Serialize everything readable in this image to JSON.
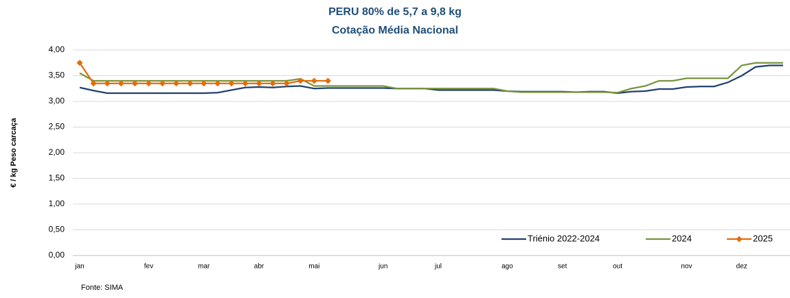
{
  "chart_data": {
    "type": "line",
    "title": "PERU 80% de 5,7 a 9,8 kg",
    "subtitle": "Cotação Média Nacional",
    "y_label": "€ / kg Peso carcaça",
    "source": "Fonte: SIMA",
    "categories": [
      "jan",
      null,
      null,
      null,
      null,
      "fev",
      null,
      null,
      null,
      "mar",
      null,
      null,
      null,
      "abr",
      null,
      null,
      null,
      "mai",
      null,
      null,
      null,
      null,
      "jun",
      null,
      null,
      null,
      "jul",
      null,
      null,
      null,
      null,
      "ago",
      null,
      null,
      null,
      "set",
      null,
      null,
      null,
      "out",
      null,
      null,
      null,
      null,
      "nov",
      null,
      null,
      null,
      "dez",
      null,
      null,
      null
    ],
    "series": [
      {
        "name": "Triénio 2022-2024",
        "color": "#203f6e",
        "marker": false,
        "values": [
          3.27,
          3.21,
          3.16,
          3.16,
          3.16,
          3.16,
          3.16,
          3.16,
          3.16,
          3.16,
          3.17,
          3.22,
          3.27,
          3.28,
          3.27,
          3.29,
          3.3,
          3.25,
          3.26,
          3.26,
          3.26,
          3.26,
          3.26,
          3.25,
          3.25,
          3.25,
          3.22,
          3.22,
          3.22,
          3.22,
          3.22,
          3.2,
          3.19,
          3.19,
          3.19,
          3.19,
          3.18,
          3.19,
          3.19,
          3.16,
          3.19,
          3.2,
          3.24,
          3.24,
          3.28,
          3.29,
          3.29,
          3.37,
          3.5,
          3.67,
          3.7,
          3.7
        ]
      },
      {
        "name": "2024",
        "color": "#77933c",
        "marker": false,
        "values": [
          3.55,
          3.4,
          3.4,
          3.4,
          3.4,
          3.4,
          3.4,
          3.4,
          3.4,
          3.4,
          3.4,
          3.4,
          3.4,
          3.4,
          3.4,
          3.4,
          3.44,
          3.3,
          3.3,
          3.3,
          3.3,
          3.3,
          3.3,
          3.25,
          3.25,
          3.25,
          3.25,
          3.25,
          3.25,
          3.25,
          3.25,
          3.2,
          3.18,
          3.18,
          3.18,
          3.18,
          3.18,
          3.18,
          3.18,
          3.17,
          3.25,
          3.3,
          3.4,
          3.4,
          3.45,
          3.45,
          3.45,
          3.45,
          3.7,
          3.75,
          3.75,
          3.75
        ]
      },
      {
        "name": "2025",
        "color": "#e36c09",
        "marker": true,
        "values": [
          3.75,
          3.35,
          3.35,
          3.35,
          3.35,
          3.35,
          3.35,
          3.35,
          3.35,
          3.35,
          3.35,
          3.35,
          3.35,
          3.35,
          3.35,
          3.35,
          3.4,
          3.4,
          3.4,
          null,
          null,
          null,
          null,
          null,
          null,
          null,
          null,
          null,
          null,
          null,
          null,
          null,
          null,
          null,
          null,
          null,
          null,
          null,
          null,
          null,
          null,
          null,
          null,
          null,
          null,
          null,
          null,
          null,
          null,
          null,
          null,
          null
        ]
      }
    ],
    "ylim": [
      0,
      4
    ],
    "yticks": [
      {
        "value": 0,
        "label": "0,00"
      },
      {
        "value": 0.5,
        "label": "0,50"
      },
      {
        "value": 1,
        "label": "1,00"
      },
      {
        "value": 1.5,
        "label": "1,50"
      },
      {
        "value": 2,
        "label": "2,00"
      },
      {
        "value": 2.5,
        "label": "2,50"
      },
      {
        "value": 3,
        "label": "3,00"
      },
      {
        "value": 3.5,
        "label": "3,50"
      },
      {
        "value": 4,
        "label": "4,00"
      }
    ],
    "grid": true
  }
}
